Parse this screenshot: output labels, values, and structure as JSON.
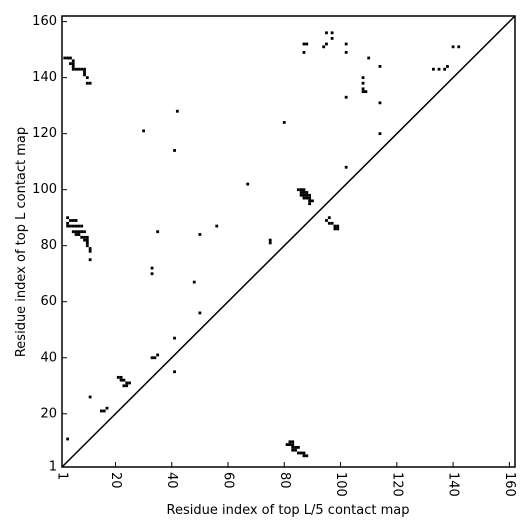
{
  "chart_data": {
    "type": "scatter",
    "xlabel": "Residue index of top L/5 contact map",
    "ylabel": "Residue index of top L contact map",
    "color": "#000000",
    "marker": "square",
    "diagonal": true,
    "xlim": [
      1,
      162
    ],
    "ylim": [
      1,
      162
    ],
    "xticks": [
      1,
      20,
      40,
      60,
      80,
      100,
      120,
      140,
      160
    ],
    "yticks": [
      1,
      20,
      40,
      60,
      80,
      100,
      120,
      140,
      160
    ],
    "x": [
      2,
      3,
      4,
      5,
      5,
      4,
      5,
      5,
      6,
      7,
      8,
      9,
      9,
      9,
      10,
      10,
      11,
      88,
      87,
      87,
      95,
      97,
      97,
      95,
      94,
      102,
      102,
      110,
      114,
      108,
      108,
      108,
      109,
      108,
      102,
      114,
      133,
      135,
      137,
      138,
      140,
      142,
      114,
      42,
      30,
      80,
      41,
      102,
      67,
      3,
      3,
      4,
      5,
      6,
      3,
      4,
      5,
      6,
      7,
      8,
      5,
      6,
      7,
      8,
      9,
      6,
      7,
      8,
      9,
      10,
      9,
      10,
      10,
      10,
      11,
      11,
      11,
      35,
      50,
      56,
      75,
      75,
      33,
      33,
      48,
      50,
      41,
      85,
      86,
      87,
      86,
      87,
      88,
      86,
      87,
      88,
      89,
      87,
      88,
      89,
      89,
      90,
      89,
      95,
      96,
      96,
      97,
      98,
      99,
      99,
      98,
      33,
      34,
      35,
      41,
      21,
      22,
      22,
      23,
      24,
      23,
      24,
      25,
      11,
      15,
      16,
      17,
      3,
      82,
      83,
      83,
      82,
      81,
      83,
      84,
      85,
      83,
      84,
      85,
      86,
      87,
      88,
      87
    ],
    "y": [
      147,
      147,
      147,
      146,
      145,
      145,
      144,
      143,
      143,
      143,
      143,
      143,
      142,
      141,
      140,
      138,
      138,
      152,
      152,
      149,
      156,
      156,
      154,
      152,
      151,
      152,
      149,
      147,
      144,
      140,
      138,
      136,
      135,
      135,
      133,
      131,
      143,
      143,
      143,
      144,
      151,
      151,
      120,
      128,
      121,
      124,
      114,
      108,
      102,
      90,
      88,
      89,
      89,
      89,
      87,
      87,
      87,
      87,
      87,
      87,
      85,
      85,
      85,
      85,
      85,
      84,
      84,
      83,
      83,
      83,
      82,
      82,
      81,
      80,
      79,
      78,
      75,
      85,
      84,
      87,
      82,
      81,
      72,
      70,
      67,
      56,
      47,
      100,
      100,
      100,
      99,
      99,
      99,
      98,
      98,
      98,
      98,
      97,
      97,
      97,
      96,
      96,
      95,
      89,
      90,
      88,
      88,
      87,
      87,
      86,
      86,
      40,
      40,
      41,
      35,
      33,
      33,
      32,
      32,
      31,
      30,
      30,
      31,
      26,
      21,
      21,
      22,
      11,
      10,
      10,
      9,
      9,
      9,
      8,
      8,
      8,
      7,
      7,
      6,
      6,
      5,
      5,
      6
    ]
  }
}
